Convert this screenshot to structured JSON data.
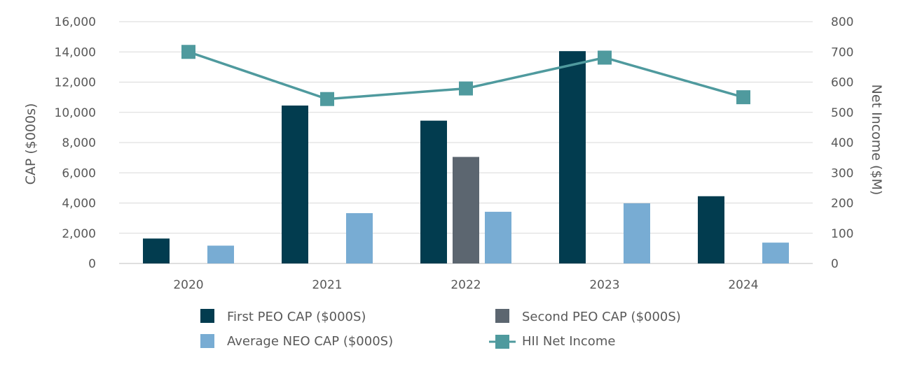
{
  "chart_data": {
    "type": "bar",
    "title": "",
    "categories": [
      "2020",
      "2021",
      "2022",
      "2023",
      "2024"
    ],
    "series": [
      {
        "name": "First PEO CAP ($000S)",
        "type": "bar",
        "axis": "left",
        "color": "#023c4f",
        "values": [
          1650,
          10450,
          9450,
          14050,
          4450
        ]
      },
      {
        "name": "Second PEO CAP ($000S)",
        "type": "bar",
        "axis": "left",
        "color": "#5c6670",
        "values": [
          null,
          null,
          7050,
          null,
          null
        ]
      },
      {
        "name": "Average NEO CAP ($000S)",
        "type": "bar",
        "axis": "left",
        "color": "#78acd3",
        "values": [
          1180,
          3330,
          3420,
          3980,
          1380
        ]
      },
      {
        "name": "HII Net Income",
        "type": "line",
        "axis": "right",
        "color": "#4f9a9e",
        "values": [
          700,
          544,
          579,
          681,
          550
        ]
      }
    ],
    "y_left": {
      "label": "CAP ($000s)",
      "min": 0,
      "max": 16000,
      "step": 2000,
      "tick_labels": [
        "0",
        "2,000",
        "4,000",
        "6,000",
        "8,000",
        "10,000",
        "12,000",
        "14,000",
        "16,000"
      ]
    },
    "y_right": {
      "label": "Net Income ($M)",
      "min": 0,
      "max": 800,
      "step": 100,
      "tick_labels": [
        "0",
        "100",
        "200",
        "300",
        "400",
        "500",
        "600",
        "700",
        "800"
      ]
    },
    "grid": true,
    "legend_position": "bottom"
  }
}
